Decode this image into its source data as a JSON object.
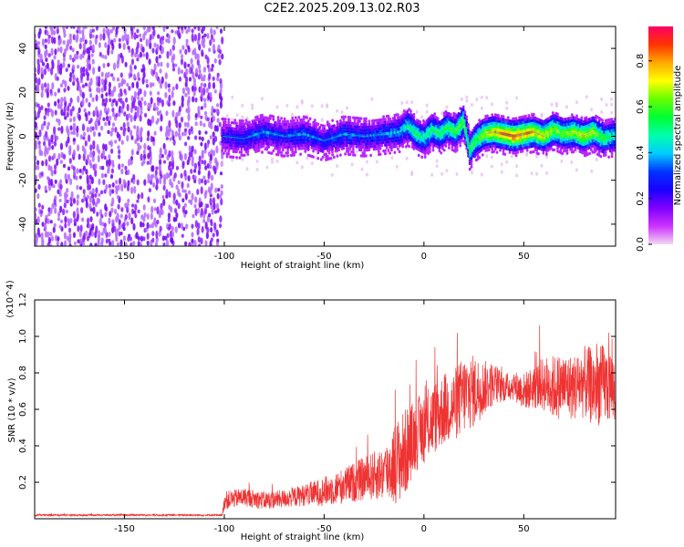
{
  "title": "C2E2.2025.209.13.02.R03",
  "chart_data": [
    {
      "type": "heatmap",
      "title": "C2E2.2025.209.13.02.R03",
      "xlabel": "Height of straight line (km)",
      "ylabel": "Frequency (Hz)",
      "xlim": [
        -195,
        96
      ],
      "ylim": [
        -50,
        50
      ],
      "xticks": [
        -150,
        -100,
        -50,
        0,
        50
      ],
      "yticks": [
        -40,
        -20,
        0,
        20,
        40
      ],
      "colorbar": {
        "label": "Normalized spectral amplitude",
        "range": [
          0.0,
          0.95
        ],
        "ticks": [
          0.0,
          0.2,
          0.4,
          0.6,
          0.8
        ],
        "colormap": [
          "#f2d8f2",
          "#cc33ff",
          "#7f00ff",
          "#1a00ff",
          "#0033ff",
          "#00ccff",
          "#00ffaa",
          "#00ff33",
          "#66ff00",
          "#ffff00",
          "#ffaa00",
          "#ff3300",
          "#ff0066"
        ]
      },
      "regions": [
        {
          "name": "noise",
          "x": [
            -195,
            -101
          ],
          "y": [
            -50,
            50
          ],
          "amplitude": 0.1
        },
        {
          "name": "band",
          "x": [
            -101,
            96
          ],
          "y": [
            -8,
            8
          ],
          "amplitude": 0.3
        }
      ],
      "ridge": {
        "x": [
          -101,
          -90,
          -80,
          -70,
          -60,
          -50,
          -40,
          -30,
          -20,
          -12,
          -8,
          -4,
          0,
          4,
          8,
          12,
          16,
          20,
          23,
          26,
          30,
          35,
          40,
          45,
          50,
          55,
          60,
          65,
          70,
          75,
          80,
          85,
          90,
          95
        ],
        "y": [
          0,
          -1,
          2,
          0,
          1,
          -2,
          1,
          0,
          1,
          2,
          5,
          1,
          -1,
          3,
          1,
          4,
          2,
          7,
          -6,
          -2,
          1,
          2,
          1,
          0,
          1,
          2,
          0,
          3,
          1,
          2,
          0,
          2,
          -1,
          0
        ],
        "amplitude": [
          0.25,
          0.3,
          0.35,
          0.3,
          0.35,
          0.3,
          0.35,
          0.3,
          0.35,
          0.4,
          0.5,
          0.55,
          0.5,
          0.55,
          0.55,
          0.6,
          0.6,
          0.65,
          0.6,
          0.6,
          0.7,
          0.8,
          0.85,
          0.9,
          0.85,
          0.8,
          0.75,
          0.7,
          0.65,
          0.7,
          0.75,
          0.7,
          0.6,
          0.5
        ]
      }
    },
    {
      "type": "line",
      "xlabel": "Height of straight line (km)",
      "ylabel": "SNR (10 * v/v)",
      "y_multiplier": "(x10^4)",
      "xlim": [
        -195,
        96
      ],
      "ylim": [
        0,
        1.2
      ],
      "xticks": [
        -150,
        -100,
        -50,
        0,
        50
      ],
      "yticks": [
        0.2,
        0.4,
        0.6,
        0.8,
        1.0,
        1.2
      ],
      "series": [
        {
          "color": "#ef3333",
          "x": [
            -195,
            -150,
            -101,
            -100,
            -90,
            -80,
            -70,
            -60,
            -50,
            -40,
            -30,
            -20,
            -15,
            -10,
            -5,
            0,
            5,
            10,
            15,
            20,
            25,
            30,
            35,
            40,
            45,
            50,
            55,
            60,
            65,
            70,
            75,
            80,
            85,
            90,
            96
          ],
          "y": [
            0.02,
            0.02,
            0.02,
            0.1,
            0.12,
            0.1,
            0.11,
            0.13,
            0.15,
            0.18,
            0.22,
            0.25,
            0.3,
            0.35,
            0.45,
            0.5,
            0.55,
            0.6,
            0.62,
            0.68,
            0.7,
            0.72,
            0.74,
            0.72,
            0.73,
            0.7,
            0.72,
            0.74,
            0.72,
            0.73,
            0.72,
            0.75,
            0.72,
            0.74,
            0.72
          ],
          "spread": [
            0.005,
            0.005,
            0.005,
            0.05,
            0.05,
            0.05,
            0.05,
            0.06,
            0.08,
            0.1,
            0.12,
            0.15,
            0.22,
            0.25,
            0.2,
            0.2,
            0.2,
            0.2,
            0.2,
            0.22,
            0.2,
            0.15,
            0.12,
            0.08,
            0.08,
            0.1,
            0.12,
            0.15,
            0.18,
            0.18,
            0.18,
            0.2,
            0.22,
            0.22,
            0.2
          ]
        }
      ]
    }
  ]
}
